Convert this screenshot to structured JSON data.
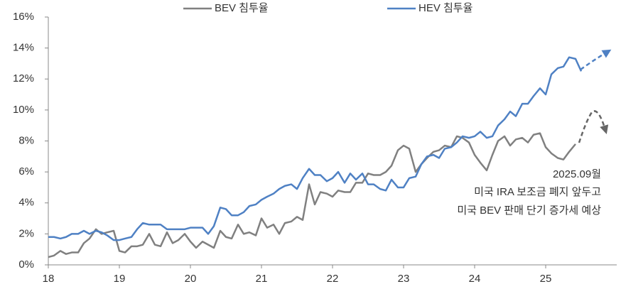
{
  "chart_data": {
    "type": "line",
    "x": [
      18,
      18.08,
      18.17,
      18.25,
      18.33,
      18.42,
      18.5,
      18.58,
      18.67,
      18.75,
      18.83,
      18.92,
      19,
      19.08,
      19.17,
      19.25,
      19.33,
      19.42,
      19.5,
      19.58,
      19.67,
      19.75,
      19.83,
      19.92,
      20,
      20.08,
      20.17,
      20.25,
      20.33,
      20.42,
      20.5,
      20.58,
      20.67,
      20.75,
      20.83,
      20.92,
      21,
      21.08,
      21.17,
      21.25,
      21.33,
      21.42,
      21.5,
      21.58,
      21.67,
      21.75,
      21.83,
      21.92,
      22,
      22.08,
      22.17,
      22.25,
      22.33,
      22.42,
      22.5,
      22.58,
      22.67,
      22.75,
      22.83,
      22.92,
      23,
      23.08,
      23.17,
      23.25,
      23.33,
      23.42,
      23.5,
      23.58,
      23.67,
      23.75,
      23.83,
      23.92,
      24,
      24.08,
      24.17,
      24.25,
      24.33,
      24.42,
      24.5,
      24.58,
      24.67,
      24.75,
      24.83,
      24.92,
      25,
      25.08,
      25.17,
      25.25,
      25.33,
      25.42,
      25.5
    ],
    "series": [
      {
        "name": "BEV 침투율",
        "color": "#808080",
        "values": [
          0.5,
          0.6,
          0.9,
          0.7,
          0.8,
          0.8,
          1.4,
          1.7,
          2.3,
          2.0,
          2.1,
          2.2,
          0.9,
          0.8,
          1.2,
          1.2,
          1.3,
          2.0,
          1.3,
          1.2,
          2.1,
          1.4,
          1.6,
          2.0,
          1.5,
          1.1,
          1.5,
          1.3,
          1.1,
          2.2,
          1.8,
          1.7,
          2.6,
          2.0,
          2.1,
          1.9,
          3.0,
          2.4,
          2.6,
          2.0,
          2.7,
          2.8,
          3.1,
          2.9,
          5.2,
          3.9,
          4.7,
          4.6,
          4.4,
          4.8,
          4.7,
          4.7,
          5.3,
          5.3,
          5.9,
          5.8,
          5.8,
          6.0,
          6.4,
          7.4,
          7.7,
          7.5,
          6.0,
          6.5,
          6.9,
          7.3,
          7.4,
          7.7,
          7.6,
          8.3,
          8.2,
          7.9,
          7.1,
          6.6,
          6.1,
          7.1,
          8.0,
          8.3,
          7.7,
          8.1,
          8.2,
          7.9,
          8.4,
          8.5,
          7.6,
          7.2,
          6.9,
          6.8,
          7.3,
          7.8,
          null
        ]
      },
      {
        "name": "HEV 침투율",
        "color": "#4f81c4",
        "values": [
          1.8,
          1.8,
          1.7,
          1.8,
          2.0,
          2.0,
          2.2,
          2.0,
          2.2,
          2.1,
          1.9,
          1.6,
          1.6,
          1.7,
          1.8,
          2.3,
          2.7,
          2.6,
          2.6,
          2.6,
          2.3,
          2.3,
          2.3,
          2.3,
          2.4,
          2.4,
          2.4,
          2.0,
          2.5,
          3.7,
          3.6,
          3.2,
          3.2,
          3.4,
          3.8,
          3.9,
          4.2,
          4.4,
          4.6,
          4.9,
          5.1,
          5.2,
          4.9,
          5.6,
          6.2,
          5.8,
          5.8,
          5.4,
          5.6,
          6.0,
          5.3,
          5.9,
          5.5,
          5.9,
          5.2,
          5.2,
          4.9,
          4.8,
          5.5,
          5.0,
          5.0,
          5.6,
          5.7,
          6.5,
          7.0,
          7.1,
          6.9,
          7.5,
          7.6,
          7.9,
          8.3,
          8.2,
          8.3,
          8.6,
          8.2,
          8.3,
          9.0,
          9.4,
          9.9,
          9.6,
          10.4,
          10.4,
          10.9,
          11.4,
          11.0,
          12.3,
          12.7,
          12.8,
          13.4,
          13.3,
          12.5
        ]
      }
    ],
    "xlim": [
      18,
      26
    ],
    "xticks": [
      18,
      19,
      20,
      21,
      22,
      23,
      24,
      25
    ],
    "ylim": [
      0,
      16
    ],
    "yticks": [
      {
        "value": 0,
        "label": "0%"
      },
      {
        "value": 2,
        "label": "2%"
      },
      {
        "value": 4,
        "label": "4%"
      },
      {
        "value": 6,
        "label": "6%"
      },
      {
        "value": 8,
        "label": "8%"
      },
      {
        "value": 10,
        "label": "10%"
      },
      {
        "value": 12,
        "label": "12%"
      },
      {
        "value": 14,
        "label": "14%"
      },
      {
        "value": 16,
        "label": "16%"
      }
    ],
    "grid": false,
    "legend": "top",
    "annotation": [
      "2025.09월",
      "미국 IRA 보조금 폐지 앞두고",
      "미국 BEV 판매 단기 증가세 예상"
    ]
  }
}
